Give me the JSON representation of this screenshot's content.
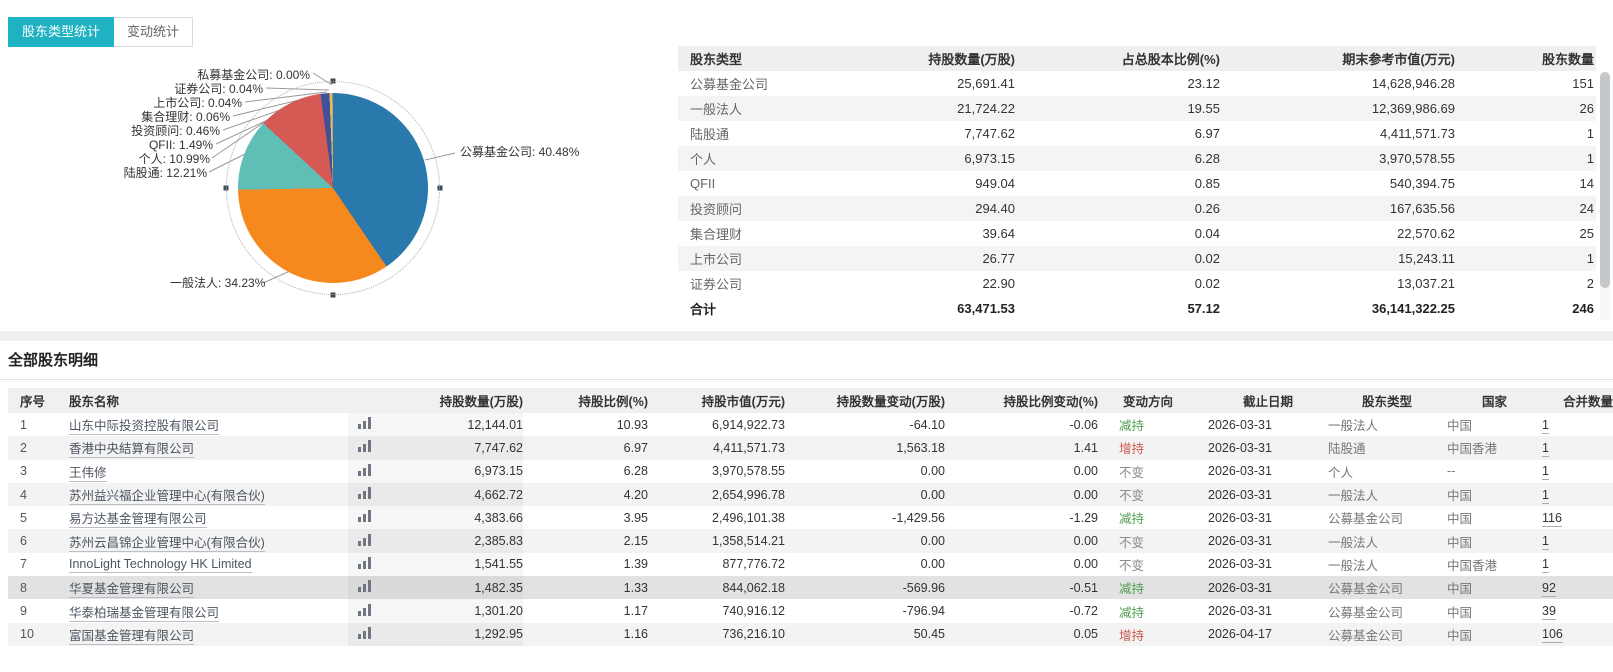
{
  "tabs": [
    {
      "label": "股东类型统计",
      "active": true
    },
    {
      "label": "变动统计",
      "active": false
    }
  ],
  "colors": {
    "tab_active_bg": "#1fb2c3",
    "increase_red": "#cb584e",
    "decrease_green": "#4f9e4f",
    "unchanged_gray": "#8a8a8a"
  },
  "chart_data": {
    "type": "pie",
    "unit": "%",
    "legend_position": "labels-with-leader-lines",
    "slices": [
      {
        "label": "公募基金公司",
        "value": 40.48,
        "color": "#2a79ad"
      },
      {
        "label": "一般法人",
        "value": 34.23,
        "color": "#f6891e"
      },
      {
        "label": "陆股通",
        "value": 12.21,
        "color": "#5fbfb6"
      },
      {
        "label": "个人",
        "value": 10.99,
        "color": "#d65a54"
      },
      {
        "label": "QFII",
        "value": 1.49,
        "color": "#40509a"
      },
      {
        "label": "投资顾问",
        "value": 0.46,
        "color": "#e3bf4e"
      },
      {
        "label": "集合理财",
        "value": 0.06,
        "color": "#8aa85f"
      },
      {
        "label": "上市公司",
        "value": 0.04,
        "color": "#b77fb4"
      },
      {
        "label": "证券公司",
        "value": 0.04,
        "color": "#7d6aa8"
      },
      {
        "label": "私募基金公司",
        "value": 0.0,
        "color": "#9a9a9a"
      }
    ]
  },
  "summary_table": {
    "headers": [
      "股东类型",
      "持股数量(万股)",
      "占总股本比例(%)",
      "期末参考市值(万元)",
      "股东数量"
    ],
    "rows": [
      [
        "公募基金公司",
        "25,691.41",
        "23.12",
        "14,628,946.28",
        "151"
      ],
      [
        "一般法人",
        "21,724.22",
        "19.55",
        "12,369,986.69",
        "26"
      ],
      [
        "陆股通",
        "7,747.62",
        "6.97",
        "4,411,571.73",
        "1"
      ],
      [
        "个人",
        "6,973.15",
        "6.28",
        "3,970,578.55",
        "1"
      ],
      [
        "QFII",
        "949.04",
        "0.85",
        "540,394.75",
        "14"
      ],
      [
        "投资顾问",
        "294.40",
        "0.26",
        "167,635.56",
        "24"
      ],
      [
        "集合理财",
        "39.64",
        "0.04",
        "22,570.62",
        "25"
      ],
      [
        "上市公司",
        "26.77",
        "0.02",
        "15,243.11",
        "1"
      ],
      [
        "证券公司",
        "22.90",
        "0.02",
        "13,037.21",
        "2"
      ]
    ],
    "total": [
      "合计",
      "63,471.53",
      "57.12",
      "36,141,322.25",
      "246"
    ]
  },
  "detail": {
    "title": "全部股东明细",
    "headers": [
      "序号",
      "股东名称",
      "持股数量(万股)",
      "持股比例(%)",
      "持股市值(万元)",
      "持股数量变动(万股)",
      "持股比例变动(%)",
      "变动方向",
      "截止日期",
      "股东类型",
      "国家",
      "合并数量"
    ],
    "rows": [
      {
        "no": "1",
        "name": "山东中际投资控股有限公司",
        "qty": "12,144.01",
        "pct": "10.93",
        "value": "6,914,922.73",
        "qty_change": "-64.10",
        "pct_change": "-0.06",
        "direction": "减持",
        "trend": "down",
        "date": "2026-03-31",
        "type": "一般法人",
        "country": "中国",
        "merge": "1",
        "highlight": false
      },
      {
        "no": "2",
        "name": "香港中央結算有限公司",
        "qty": "7,747.62",
        "pct": "6.97",
        "value": "4,411,571.73",
        "qty_change": "1,563.18",
        "pct_change": "1.41",
        "direction": "增持",
        "trend": "up",
        "date": "2026-03-31",
        "type": "陆股通",
        "country": "中国香港",
        "merge": "1",
        "highlight": false
      },
      {
        "no": "3",
        "name": "王伟修",
        "qty": "6,973.15",
        "pct": "6.28",
        "value": "3,970,578.55",
        "qty_change": "0.00",
        "pct_change": "0.00",
        "direction": "不变",
        "trend": "flat",
        "date": "2026-03-31",
        "type": "个人",
        "country": "--",
        "merge": "1",
        "highlight": false
      },
      {
        "no": "4",
        "name": "苏州益兴福企业管理中心(有限合伙)",
        "qty": "4,662.72",
        "pct": "4.20",
        "value": "2,654,996.78",
        "qty_change": "0.00",
        "pct_change": "0.00",
        "direction": "不变",
        "trend": "flat",
        "date": "2026-03-31",
        "type": "一般法人",
        "country": "中国",
        "merge": "1",
        "highlight": false
      },
      {
        "no": "5",
        "name": "易方达基金管理有限公司",
        "qty": "4,383.66",
        "pct": "3.95",
        "value": "2,496,101.38",
        "qty_change": "-1,429.56",
        "pct_change": "-1.29",
        "direction": "减持",
        "trend": "down",
        "date": "2026-03-31",
        "type": "公募基金公司",
        "country": "中国",
        "merge": "116",
        "highlight": false
      },
      {
        "no": "6",
        "name": "苏州云昌锦企业管理中心(有限合伙)",
        "qty": "2,385.83",
        "pct": "2.15",
        "value": "1,358,514.21",
        "qty_change": "0.00",
        "pct_change": "0.00",
        "direction": "不变",
        "trend": "flat",
        "date": "2026-03-31",
        "type": "一般法人",
        "country": "中国",
        "merge": "1",
        "highlight": false
      },
      {
        "no": "7",
        "name": "InnoLight Technology HK Limited",
        "qty": "1,541.55",
        "pct": "1.39",
        "value": "877,776.72",
        "qty_change": "0.00",
        "pct_change": "0.00",
        "direction": "不变",
        "trend": "flat",
        "date": "2026-03-31",
        "type": "一般法人",
        "country": "中国香港",
        "merge": "1",
        "highlight": false
      },
      {
        "no": "8",
        "name": "华夏基金管理有限公司",
        "qty": "1,482.35",
        "pct": "1.33",
        "value": "844,062.18",
        "qty_change": "-569.96",
        "pct_change": "-0.51",
        "direction": "减持",
        "trend": "down",
        "date": "2026-03-31",
        "type": "公募基金公司",
        "country": "中国",
        "merge": "92",
        "highlight": true
      },
      {
        "no": "9",
        "name": "华泰柏瑞基金管理有限公司",
        "qty": "1,301.20",
        "pct": "1.17",
        "value": "740,916.12",
        "qty_change": "-796.94",
        "pct_change": "-0.72",
        "direction": "减持",
        "trend": "down",
        "date": "2026-03-31",
        "type": "公募基金公司",
        "country": "中国",
        "merge": "39",
        "highlight": false
      },
      {
        "no": "10",
        "name": "富国基金管理有限公司",
        "qty": "1,292.95",
        "pct": "1.16",
        "value": "736,216.10",
        "qty_change": "50.45",
        "pct_change": "0.05",
        "direction": "增持",
        "trend": "up",
        "date": "2026-04-17",
        "type": "公募基金公司",
        "country": "中国",
        "merge": "106",
        "highlight": false
      }
    ]
  }
}
